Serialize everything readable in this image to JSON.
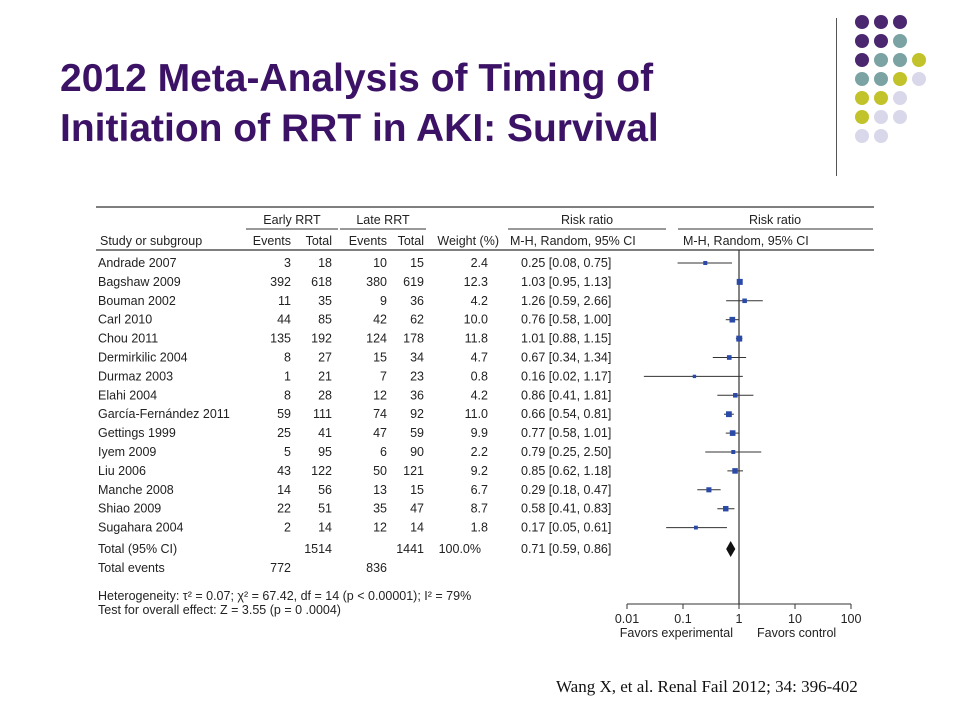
{
  "slide": {
    "title_line1": "2012 Meta-Analysis of Timing of",
    "title_line2": "Initiation of RRT in AKI: Survival",
    "citation": "Wang X, et al. Renal Fail 2012; 34: 396-402",
    "accent_colors": [
      "#4b2770",
      "#7ba3a3",
      "#c2c22a",
      "#d8d8ea"
    ]
  },
  "chart_data": {
    "type": "table",
    "group_headers": [
      "Early RRT",
      "Late RRT",
      "Risk ratio",
      "Risk ratio"
    ],
    "columns": [
      "Study or subgroup",
      "Events",
      "Total",
      "Events",
      "Total",
      "Weight (%)",
      "M-H, Random, 95% CI",
      "M-H, Random, 95% CI"
    ],
    "studies": [
      {
        "name": "Andrade 2007",
        "e_ev": "3",
        "e_tot": "18",
        "l_ev": "10",
        "l_tot": "15",
        "weight": "2.4",
        "ci_text": "0.25 [0.08, 0.75]",
        "rr": 0.25,
        "lo": 0.08,
        "hi": 0.75
      },
      {
        "name": "Bagshaw 2009",
        "e_ev": "392",
        "e_tot": "618",
        "l_ev": "380",
        "l_tot": "619",
        "weight": "12.3",
        "ci_text": "1.03 [0.95, 1.13]",
        "rr": 1.03,
        "lo": 0.95,
        "hi": 1.13
      },
      {
        "name": "Bouman 2002",
        "e_ev": "11",
        "e_tot": "35",
        "l_ev": "9",
        "l_tot": "36",
        "weight": "4.2",
        "ci_text": "1.26 [0.59, 2.66]",
        "rr": 1.26,
        "lo": 0.59,
        "hi": 2.66
      },
      {
        "name": "Carl 2010",
        "e_ev": "44",
        "e_tot": "85",
        "l_ev": "42",
        "l_tot": "62",
        "weight": "10.0",
        "ci_text": "0.76 [0.58, 1.00]",
        "rr": 0.76,
        "lo": 0.58,
        "hi": 1.0
      },
      {
        "name": "Chou 2011",
        "e_ev": "135",
        "e_tot": "192",
        "l_ev": "124",
        "l_tot": "178",
        "weight": "11.8",
        "ci_text": "1.01 [0.88, 1.15]",
        "rr": 1.01,
        "lo": 0.88,
        "hi": 1.15
      },
      {
        "name": "Dermirkilic 2004",
        "e_ev": "8",
        "e_tot": "27",
        "l_ev": "15",
        "l_tot": "34",
        "weight": "4.7",
        "ci_text": "0.67 [0.34, 1.34]",
        "rr": 0.67,
        "lo": 0.34,
        "hi": 1.34
      },
      {
        "name": "Durmaz 2003",
        "e_ev": "1",
        "e_tot": "21",
        "l_ev": "7",
        "l_tot": "23",
        "weight": "0.8",
        "ci_text": "0.16 [0.02, 1.17]",
        "rr": 0.16,
        "lo": 0.02,
        "hi": 1.17
      },
      {
        "name": "Elahi 2004",
        "e_ev": "8",
        "e_tot": "28",
        "l_ev": "12",
        "l_tot": "36",
        "weight": "4.2",
        "ci_text": "0.86 [0.41, 1.81]",
        "rr": 0.86,
        "lo": 0.41,
        "hi": 1.81
      },
      {
        "name": "García-Fernández 2011",
        "e_ev": "59",
        "e_tot": "111",
        "l_ev": "74",
        "l_tot": "92",
        "weight": "11.0",
        "ci_text": "0.66 [0.54, 0.81]",
        "rr": 0.66,
        "lo": 0.54,
        "hi": 0.81
      },
      {
        "name": "Gettings 1999",
        "e_ev": "25",
        "e_tot": "41",
        "l_ev": "47",
        "l_tot": "59",
        "weight": "9.9",
        "ci_text": "0.77 [0.58, 1.01]",
        "rr": 0.77,
        "lo": 0.58,
        "hi": 1.01
      },
      {
        "name": "Iyem 2009",
        "e_ev": "5",
        "e_tot": "95",
        "l_ev": "6",
        "l_tot": "90",
        "weight": "2.2",
        "ci_text": "0.79 [0.25, 2.50]",
        "rr": 0.79,
        "lo": 0.25,
        "hi": 2.5
      },
      {
        "name": "Liu 2006",
        "e_ev": "43",
        "e_tot": "122",
        "l_ev": "50",
        "l_tot": "121",
        "weight": "9.2",
        "ci_text": "0.85 [0.62, 1.18]",
        "rr": 0.85,
        "lo": 0.62,
        "hi": 1.18
      },
      {
        "name": "Manche 2008",
        "e_ev": "14",
        "e_tot": "56",
        "l_ev": "13",
        "l_tot": "15",
        "weight": "6.7",
        "ci_text": "0.29 [0.18, 0.47]",
        "rr": 0.29,
        "lo": 0.18,
        "hi": 0.47
      },
      {
        "name": "Shiao 2009",
        "e_ev": "22",
        "e_tot": "51",
        "l_ev": "35",
        "l_tot": "47",
        "weight": "8.7",
        "ci_text": "0.58 [0.41, 0.83]",
        "rr": 0.58,
        "lo": 0.41,
        "hi": 0.83
      },
      {
        "name": "Sugahara 2004",
        "e_ev": "2",
        "e_tot": "14",
        "l_ev": "12",
        "l_tot": "14",
        "weight": "1.8",
        "ci_text": "0.17 [0.05, 0.61]",
        "rr": 0.17,
        "lo": 0.05,
        "hi": 0.61
      }
    ],
    "total": {
      "name": "Total (95% CI)",
      "e_tot": "1514",
      "l_tot": "1441",
      "weight": "100.0%",
      "ci_text": "0.71 [0.59, 0.86]",
      "rr": 0.71,
      "lo": 0.59,
      "hi": 0.86
    },
    "total_events": {
      "name": "Total events",
      "e_ev": "772",
      "l_ev": "836"
    },
    "heterogeneity": "Heterogeneity: τ² = 0.07; χ² = 67.42, df = 14 (p < 0.00001); I² = 79%",
    "overall_effect": "Test for overall effect: Z = 3.55 (p = 0 .0004)",
    "x_axis": {
      "scale": "log",
      "ticks": [
        0.01,
        0.1,
        1,
        10,
        100
      ],
      "tick_labels": [
        "0.01",
        "0.1",
        "1",
        "10",
        "100"
      ],
      "range": [
        0.01,
        100
      ]
    },
    "favors_left": "Favors experimental",
    "favors_right": "Favors control",
    "marker_color": "#2b4aa8"
  }
}
